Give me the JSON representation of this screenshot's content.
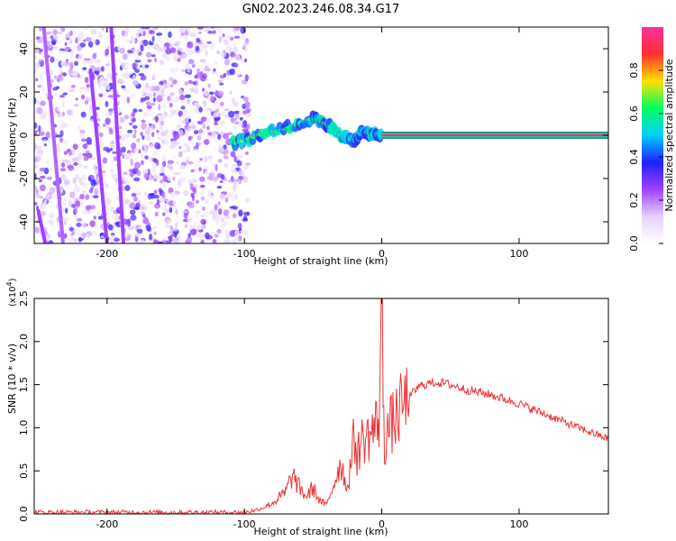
{
  "chart_data": [
    {
      "type": "heatmap",
      "title": "GN02.2023.246.08.34.G17",
      "xlabel": "Height of straight line (km)",
      "ylabel": "Frequency (Hz)",
      "xlim": [
        -253,
        165
      ],
      "ylim": [
        -50,
        50
      ],
      "xticks": [
        -200,
        -100,
        0,
        100
      ],
      "yticks": [
        -40,
        -20,
        0,
        20,
        40
      ],
      "colorbar": {
        "label": "Normalized spectral amplitude",
        "range": [
          0.0,
          1.0
        ],
        "ticks": [
          0.0,
          0.2,
          0.4,
          0.6,
          0.8
        ],
        "colormap": [
          "#ffffff",
          "#e6d0ff",
          "#a040ff",
          "#2020ff",
          "#00d0ff",
          "#00ff60",
          "#ffe000",
          "#ff3030",
          "#ff30a0"
        ]
      },
      "features": [
        {
          "name": "noise-field",
          "x_range": [
            -253,
            -97
          ],
          "y_range": [
            -50,
            50
          ],
          "amplitude": 0.12
        },
        {
          "name": "streak-a",
          "points": [
            [
              -250,
              -35
            ],
            [
              -245,
              -50
            ]
          ],
          "amplitude": 0.25
        },
        {
          "name": "streak-b",
          "points": [
            [
              -212,
              30
            ],
            [
              -200,
              -50
            ]
          ],
          "amplitude": 0.25
        },
        {
          "name": "streak-c",
          "points": [
            [
              -197,
              50
            ],
            [
              -188,
              -50
            ]
          ],
          "amplitude": 0.25
        },
        {
          "name": "streak-d",
          "points": [
            [
              -246,
              50
            ],
            [
              -232,
              -50
            ]
          ],
          "amplitude": 0.22
        },
        {
          "name": "signal-ramp",
          "points": [
            [
              -108,
              -4
            ],
            [
              -90,
              0
            ],
            [
              -70,
              3
            ],
            [
              -50,
              8
            ],
            [
              -40,
              5
            ],
            [
              -30,
              0
            ],
            [
              -20,
              -3
            ],
            [
              -15,
              2
            ],
            [
              -10,
              1
            ],
            [
              0,
              0
            ]
          ],
          "amplitude": 0.5
        },
        {
          "name": "carrier-line",
          "x_range": [
            0,
            165
          ],
          "y": 0,
          "amplitude": 0.95
        }
      ]
    },
    {
      "type": "line",
      "title": "",
      "xlabel": "Height of straight line (km)",
      "ylabel": "SNR (10 * v/v)",
      "ylabel_scale": "(x10",
      "ylabel_scale_exp": "4",
      "ylabel_scale_close": ")",
      "xlim": [
        -253,
        165
      ],
      "ylim": [
        0,
        2.5
      ],
      "xticks": [
        -200,
        -100,
        0,
        100
      ],
      "yticks": [
        0.0,
        0.5,
        1.0,
        1.5,
        2.0,
        2.5
      ],
      "ytick_labels": [
        "0.0",
        "0.5",
        "1.0",
        "1.5",
        "2.0",
        "2.5"
      ],
      "series": [
        {
          "color": "#ee3333",
          "x": [
            -253,
            -200,
            -150,
            -100,
            -90,
            -80,
            -70,
            -65,
            -60,
            -55,
            -50,
            -45,
            -40,
            -35,
            -30,
            -25,
            -20,
            -18,
            -15,
            -10,
            -5,
            -2,
            0,
            2,
            5,
            10,
            15,
            20,
            25,
            30,
            40,
            50,
            60,
            80,
            100,
            120,
            140,
            165
          ],
          "y": [
            0.02,
            0.02,
            0.02,
            0.02,
            0.05,
            0.12,
            0.25,
            0.45,
            0.3,
            0.2,
            0.3,
            0.15,
            0.1,
            0.35,
            0.6,
            0.3,
            0.9,
            0.65,
            0.85,
            0.9,
            1.0,
            1.1,
            2.5,
            0.8,
            1.0,
            1.1,
            1.25,
            1.35,
            1.45,
            1.5,
            1.53,
            1.5,
            1.45,
            1.38,
            1.28,
            1.15,
            1.02,
            0.87
          ]
        }
      ]
    }
  ]
}
